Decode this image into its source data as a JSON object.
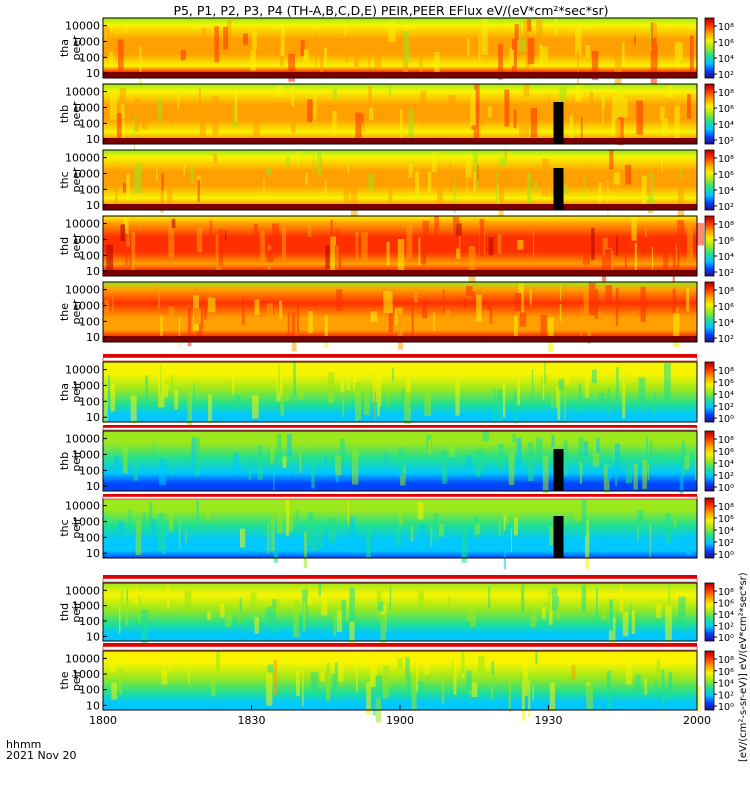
{
  "chart_data": {
    "type": "heatmap",
    "title": "P5, P1, P2, P3, P4 (TH-A,B,C,D,E) PEIR,PEER EFlux eV/(eV*cm²*sec*sr)",
    "date_label": "2021 Nov 20",
    "time_format_label": "hhmm",
    "x_ticks": [
      "1800",
      "1830",
      "1900",
      "1930",
      "2000"
    ],
    "x_range_minutes": [
      0,
      120
    ],
    "y_ticks": [
      "10000",
      "1000",
      "100",
      "10"
    ],
    "y_scale": "log",
    "y_range": [
      5,
      30000
    ],
    "colorbar_ticks_peer": [
      "10⁸",
      "10⁶",
      "10⁴",
      "10²"
    ],
    "colorbar_ticks_peir": [
      "10⁸",
      "10⁶",
      "10⁴",
      "10²",
      "10⁰"
    ],
    "colorbar_label": "[eV/(cm²-s-sr-eV)] eV/(eV*cm²*sec*sr)",
    "colormap": [
      "#2b0a8c",
      "#0044ff",
      "#00c8ff",
      "#22e090",
      "#9be81c",
      "#f8f400",
      "#ffa000",
      "#ff3000",
      "#b00000"
    ],
    "panels": [
      {
        "probe": "tha",
        "species": "peer",
        "line1": "tha",
        "line2": "peer",
        "colorbar": "peer",
        "flux_level": 0.72
      },
      {
        "probe": "thb",
        "species": "peer",
        "line1": "thb",
        "line2": "peer",
        "colorbar": "peer",
        "flux_level": 0.7
      },
      {
        "probe": "thc",
        "species": "peer",
        "line1": "thc",
        "line2": "peer",
        "colorbar": "peer",
        "flux_level": 0.66
      },
      {
        "probe": "thd",
        "species": "peer",
        "line1": "thd",
        "line2": "peer",
        "colorbar": "peer",
        "flux_level": 0.8
      },
      {
        "probe": "the",
        "species": "peer",
        "line1": "the",
        "line2": "peer",
        "colorbar": "peer",
        "flux_level": 0.76
      },
      {
        "probe": "tha",
        "species": "peir",
        "line1": "tha",
        "line2": "peir",
        "colorbar": "peir",
        "flux_level": 0.52
      },
      {
        "probe": "thb",
        "species": "peir",
        "line1": "thb",
        "line2": "peir",
        "colorbar": "peir",
        "flux_level": 0.4
      },
      {
        "probe": "thc",
        "species": "peir",
        "line1": "thc",
        "line2": "peir",
        "colorbar": "peir",
        "flux_level": 0.44
      },
      {
        "probe": "thd",
        "species": "peir",
        "line1": "thd",
        "line2": "peir",
        "colorbar": "peir",
        "flux_level": 0.5
      },
      {
        "probe": "the",
        "species": "peir",
        "line1": "the",
        "line2": "peir",
        "colorbar": "peir",
        "flux_level": 0.52
      }
    ],
    "data_gap_minute": 91
  }
}
